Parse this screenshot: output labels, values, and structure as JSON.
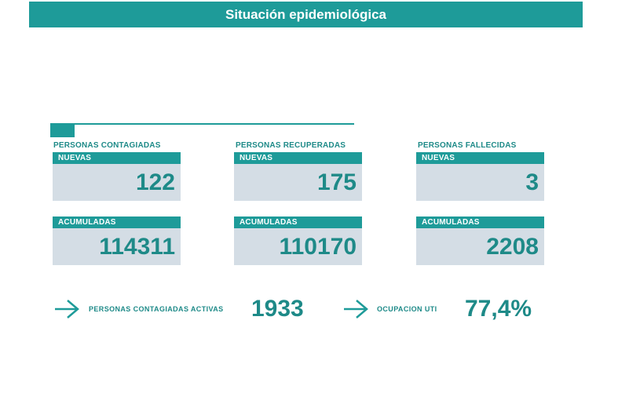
{
  "header": {
    "title": "Situación epidemiológica"
  },
  "columns": [
    {
      "title": "PERSONAS CONTAGIADAS",
      "nuevas_label": "NUEVAS",
      "nuevas_value": "122",
      "acumuladas_label": "ACUMULADAS",
      "acumuladas_value": "114311"
    },
    {
      "title": "PERSONAS RECUPERADAS",
      "nuevas_label": "NUEVAS",
      "nuevas_value": "175",
      "acumuladas_label": "ACUMULADAS",
      "acumuladas_value": "110170"
    },
    {
      "title": "PERSONAS FALLECIDAS",
      "nuevas_label": "NUEVAS",
      "nuevas_value": "3",
      "acumuladas_label": "ACUMULADAS",
      "acumuladas_value": "2208"
    }
  ],
  "summary": {
    "activas_label": "PERSONAS CONTAGIADAS ACTIVAS",
    "activas_value": "1933",
    "uti_label": "OCUPACION UTI",
    "uti_value": "77,4%"
  },
  "colors": {
    "accent": "#1e9b99",
    "card_bg": "#d4dde5",
    "text_teal": "#1e8a88"
  },
  "icons": {
    "summary_arrow": "arrow-right-icon"
  }
}
